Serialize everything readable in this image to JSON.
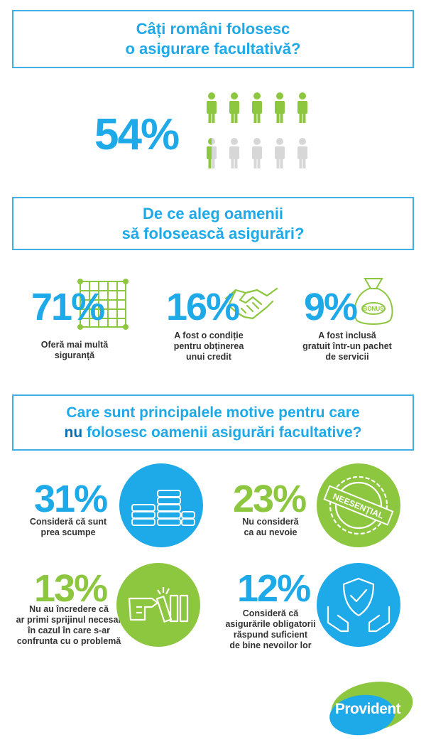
{
  "section1": {
    "title_line1": "Câți români folosesc",
    "title_line2": "o asigurare facultativă?",
    "percent": "54%"
  },
  "section2": {
    "title_line1": "De ce aleg oamenii",
    "title_line2": "să folosească asigurări?",
    "stats": [
      {
        "percent": "71%",
        "caption": [
          "Oferă mai multă",
          "siguranță"
        ],
        "icon": "safety-net-icon"
      },
      {
        "percent": "16%",
        "caption": [
          "A fost o condiție",
          "pentru obținerea",
          "unui credit"
        ],
        "icon": "handshake-icon"
      },
      {
        "percent": "9%",
        "caption": [
          "A fost inclusă",
          "gratuit într-un pachet",
          "de servicii"
        ],
        "icon": "bonus-bag-icon",
        "bag_label": "BONUS"
      }
    ]
  },
  "section3": {
    "title_line1": "Care sunt principalele motive pentru care",
    "title_line2_bold": "nu",
    "title_line2_rest": " folosesc oamenii asigurări facultative?",
    "stats": [
      {
        "percent": "31%",
        "caption": [
          "Consideră că sunt",
          "prea scumpe"
        ],
        "icon": "coin-stacks-icon"
      },
      {
        "percent": "23%",
        "caption": [
          "Nu consideră",
          "ca au nevoie"
        ],
        "icon": "neesential-stamp-icon",
        "stamp_label": "NEESENȚIAL"
      },
      {
        "percent": "13%",
        "caption": [
          "Nu au încredere că",
          "ar primi sprijinul necesar",
          "în cazul în care s-ar",
          "confrunta cu o problemă"
        ],
        "icon": "domino-push-icon"
      },
      {
        "percent": "12%",
        "caption": [
          "Consideră că",
          "asigurările obligatorii",
          "răspund suficient",
          "de bine nevoilor lor"
        ],
        "icon": "protected-shield-icon"
      }
    ]
  },
  "brand": {
    "logo_text": "Provident"
  },
  "colors": {
    "blue": "#1ea9e8",
    "green": "#8dc63f",
    "gray": "#d7d7d7",
    "dark_blue": "#0b6fb0"
  }
}
